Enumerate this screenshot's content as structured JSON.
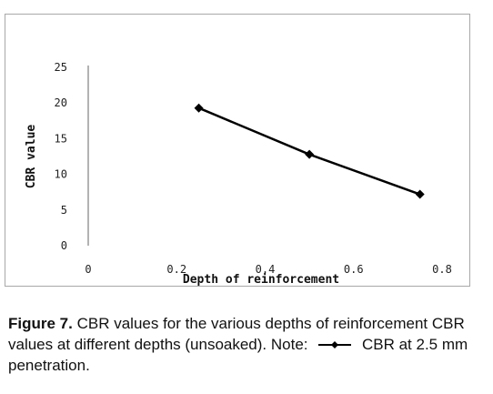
{
  "chart_data": {
    "type": "line",
    "title": "",
    "xlabel": "Depth of reinforcement",
    "ylabel": "CBR value",
    "xlim": [
      0,
      0.8
    ],
    "ylim": [
      0,
      25
    ],
    "x_ticks": [
      "0",
      "0.2",
      "0.4",
      "0.6",
      "0.8"
    ],
    "y_ticks": [
      "0",
      "5",
      "10",
      "15",
      "20",
      "25"
    ],
    "grid": false,
    "series": [
      {
        "name": "CBR at 2.5 mm penetration",
        "x": [
          0.25,
          0.5,
          0.75
        ],
        "y": [
          19.3,
          12.8,
          7.2
        ],
        "color": "#000000",
        "marker": "diamond"
      }
    ]
  },
  "caption": {
    "label": "Figure 7.",
    "text": "CBR values for the various depths of reinforcement CBR values at different depths (unsoaked). Note:",
    "legend_text": "CBR at 2.5 mm penetration."
  }
}
